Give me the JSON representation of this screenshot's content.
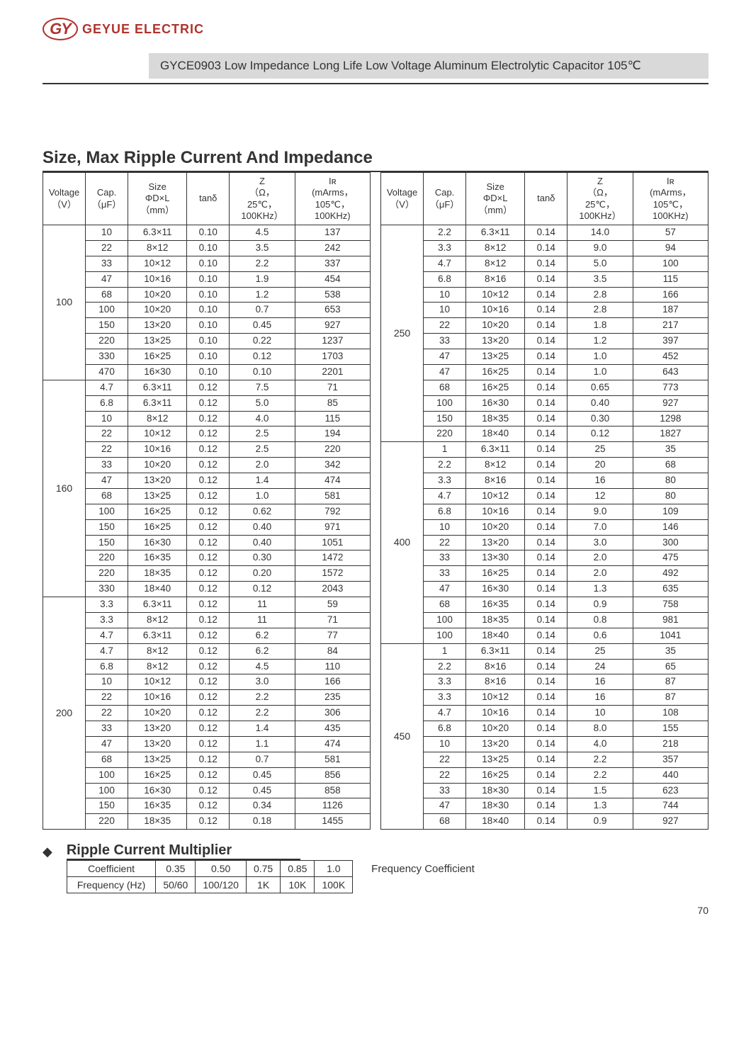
{
  "logo": {
    "mark": "GY",
    "text": "GEYUE ELECTRIC"
  },
  "banner": "GYCE0903 Low Impedance Long Life Low Voltage Aluminum Electrolytic Capacitor 105℃",
  "section1_title": "Size, Max Ripple Current And Impedance",
  "headers": {
    "voltage": "Voltage\n（V）",
    "cap": "Cap.\n（μF）",
    "size": "Size\nΦD×L\n（mm）",
    "tand": "tanδ",
    "z": "Z\n（Ω，\n25℃，\n100KHz）",
    "ir": "Iʀ\n(mArms，\n105℃，\n100KHz)"
  },
  "left_groups": [
    {
      "voltage": "100",
      "rows": [
        [
          "10",
          "6.3×11",
          "0.10",
          "4.5",
          "137"
        ],
        [
          "22",
          "8×12",
          "0.10",
          "3.5",
          "242"
        ],
        [
          "33",
          "10×12",
          "0.10",
          "2.2",
          "337"
        ],
        [
          "47",
          "10×16",
          "0.10",
          "1.9",
          "454"
        ],
        [
          "68",
          "10×20",
          "0.10",
          "1.2",
          "538"
        ],
        [
          "100",
          "10×20",
          "0.10",
          "0.7",
          "653"
        ],
        [
          "150",
          "13×20",
          "0.10",
          "0.45",
          "927"
        ],
        [
          "220",
          "13×25",
          "0.10",
          "0.22",
          "1237"
        ],
        [
          "330",
          "16×25",
          "0.10",
          "0.12",
          "1703"
        ],
        [
          "470",
          "16×30",
          "0.10",
          "0.10",
          "2201"
        ]
      ]
    },
    {
      "voltage": "160",
      "rows": [
        [
          "4.7",
          "6.3×11",
          "0.12",
          "7.5",
          "71"
        ],
        [
          "6.8",
          "6.3×11",
          "0.12",
          "5.0",
          "85"
        ],
        [
          "10",
          "8×12",
          "0.12",
          "4.0",
          "115"
        ],
        [
          "22",
          "10×12",
          "0.12",
          "2.5",
          "194"
        ],
        [
          "22",
          "10×16",
          "0.12",
          "2.5",
          "220"
        ],
        [
          "33",
          "10×20",
          "0.12",
          "2.0",
          "342"
        ],
        [
          "47",
          "13×20",
          "0.12",
          "1.4",
          "474"
        ],
        [
          "68",
          "13×25",
          "0.12",
          "1.0",
          "581"
        ],
        [
          "100",
          "16×25",
          "0.12",
          "0.62",
          "792"
        ],
        [
          "150",
          "16×25",
          "0.12",
          "0.40",
          "971"
        ],
        [
          "150",
          "16×30",
          "0.12",
          "0.40",
          "1051"
        ],
        [
          "220",
          "16×35",
          "0.12",
          "0.30",
          "1472"
        ],
        [
          "220",
          "18×35",
          "0.12",
          "0.20",
          "1572"
        ],
        [
          "330",
          "18×40",
          "0.12",
          "0.12",
          "2043"
        ]
      ]
    },
    {
      "voltage": "200",
      "rows": [
        [
          "3.3",
          "6.3×11",
          "0.12",
          "11",
          "59"
        ],
        [
          "3.3",
          "8×12",
          "0.12",
          "11",
          "71"
        ],
        [
          "4.7",
          "6.3×11",
          "0.12",
          "6.2",
          "77"
        ],
        [
          "4.7",
          "8×12",
          "0.12",
          "6.2",
          "84"
        ],
        [
          "6.8",
          "8×12",
          "0.12",
          "4.5",
          "110"
        ],
        [
          "10",
          "10×12",
          "0.12",
          "3.0",
          "166"
        ],
        [
          "22",
          "10×16",
          "0.12",
          "2.2",
          "235"
        ],
        [
          "22",
          "10×20",
          "0.12",
          "2.2",
          "306"
        ],
        [
          "33",
          "13×20",
          "0.12",
          "1.4",
          "435"
        ],
        [
          "47",
          "13×20",
          "0.12",
          "1.1",
          "474"
        ],
        [
          "68",
          "13×25",
          "0.12",
          "0.7",
          "581"
        ],
        [
          "100",
          "16×25",
          "0.12",
          "0.45",
          "856"
        ],
        [
          "100",
          "16×30",
          "0.12",
          "0.45",
          "858"
        ],
        [
          "150",
          "16×35",
          "0.12",
          "0.34",
          "1126"
        ],
        [
          "220",
          "18×35",
          "0.12",
          "0.18",
          "1455"
        ]
      ]
    }
  ],
  "right_groups": [
    {
      "voltage": "250",
      "rows": [
        [
          "2.2",
          "6.3×11",
          "0.14",
          "14.0",
          "57"
        ],
        [
          "3.3",
          "8×12",
          "0.14",
          "9.0",
          "94"
        ],
        [
          "4.7",
          "8×12",
          "0.14",
          "5.0",
          "100"
        ],
        [
          "6.8",
          "8×16",
          "0.14",
          "3.5",
          "115"
        ],
        [
          "10",
          "10×12",
          "0.14",
          "2.8",
          "166"
        ],
        [
          "10",
          "10×16",
          "0.14",
          "2.8",
          "187"
        ],
        [
          "22",
          "10×20",
          "0.14",
          "1.8",
          "217"
        ],
        [
          "33",
          "13×20",
          "0.14",
          "1.2",
          "397"
        ],
        [
          "47",
          "13×25",
          "0.14",
          "1.0",
          "452"
        ],
        [
          "47",
          "16×25",
          "0.14",
          "1.0",
          "643"
        ],
        [
          "68",
          "16×25",
          "0.14",
          "0.65",
          "773"
        ],
        [
          "100",
          "16×30",
          "0.14",
          "0.40",
          "927"
        ],
        [
          "150",
          "18×35",
          "0.14",
          "0.30",
          "1298"
        ],
        [
          "220",
          "18×40",
          "0.14",
          "0.12",
          "1827"
        ]
      ]
    },
    {
      "voltage": "400",
      "rows": [
        [
          "1",
          "6.3×11",
          "0.14",
          "25",
          "35"
        ],
        [
          "2.2",
          "8×12",
          "0.14",
          "20",
          "68"
        ],
        [
          "3.3",
          "8×16",
          "0.14",
          "16",
          "80"
        ],
        [
          "4.7",
          "10×12",
          "0.14",
          "12",
          "80"
        ],
        [
          "6.8",
          "10×16",
          "0.14",
          "9.0",
          "109"
        ],
        [
          "10",
          "10×20",
          "0.14",
          "7.0",
          "146"
        ],
        [
          "22",
          "13×20",
          "0.14",
          "3.0",
          "300"
        ],
        [
          "33",
          "13×30",
          "0.14",
          "2.0",
          "475"
        ],
        [
          "33",
          "16×25",
          "0.14",
          "2.0",
          "492"
        ],
        [
          "47",
          "16×30",
          "0.14",
          "1.3",
          "635"
        ],
        [
          "68",
          "16×35",
          "0.14",
          "0.9",
          "758"
        ],
        [
          "100",
          "18×35",
          "0.14",
          "0.8",
          "981"
        ],
        [
          "100",
          "18×40",
          "0.14",
          "0.6",
          "1041"
        ]
      ]
    },
    {
      "voltage": "450",
      "rows": [
        [
          "1",
          "6.3×11",
          "0.14",
          "25",
          "35"
        ],
        [
          "2.2",
          "8×16",
          "0.14",
          "24",
          "65"
        ],
        [
          "3.3",
          "8×16",
          "0.14",
          "16",
          "87"
        ],
        [
          "3.3",
          "10×12",
          "0.14",
          "16",
          "87"
        ],
        [
          "4.7",
          "10×16",
          "0.14",
          "10",
          "108"
        ],
        [
          "6.8",
          "10×20",
          "0.14",
          "8.0",
          "155"
        ],
        [
          "10",
          "13×20",
          "0.14",
          "4.0",
          "218"
        ],
        [
          "22",
          "13×25",
          "0.14",
          "2.2",
          "357"
        ],
        [
          "22",
          "16×25",
          "0.14",
          "2.2",
          "440"
        ],
        [
          "33",
          "18×30",
          "0.14",
          "1.5",
          "623"
        ],
        [
          "47",
          "18×30",
          "0.14",
          "1.3",
          "744"
        ],
        [
          "68",
          "18×40",
          "0.14",
          "0.9",
          "927"
        ]
      ]
    }
  ],
  "section2": {
    "title": "Ripple Current Multiplier",
    "row_labels": {
      "coeff": "Coefficient",
      "freq": "Frequency (Hz)"
    },
    "columns": [
      {
        "coeff": "0.35",
        "freq": "50/60"
      },
      {
        "coeff": "0.50",
        "freq": "100/120"
      },
      {
        "coeff": "0.75",
        "freq": "1K"
      },
      {
        "coeff": "0.85",
        "freq": "10K"
      },
      {
        "coeff": "1.0",
        "freq": "100K"
      }
    ],
    "legend": "Frequency   Coefficient"
  },
  "page_number": "70"
}
